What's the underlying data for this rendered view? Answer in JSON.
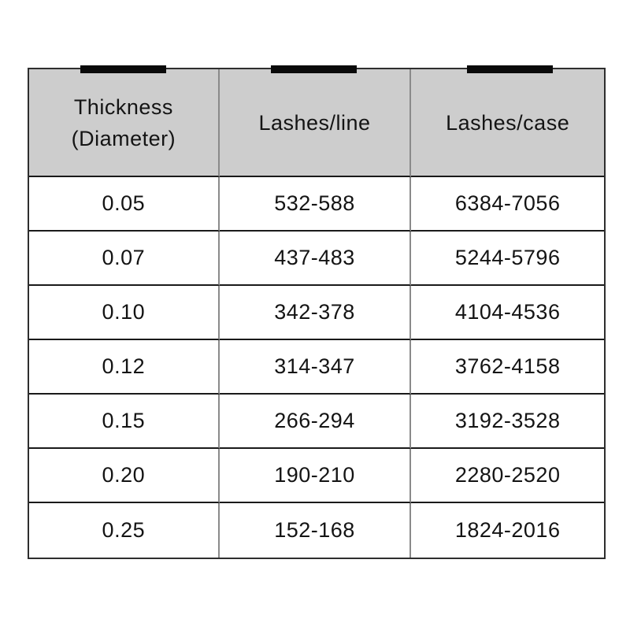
{
  "colors": {
    "page_background": "#ffffff",
    "header_background": "#cdcdcd",
    "outer_border": "#2e2e2e",
    "horizontal_rule": "#1a1a1a",
    "vertical_rule": "#8a8a8a",
    "text": "#141414",
    "tab_mark": "#0a0a0a"
  },
  "table": {
    "header": {
      "thickness_line1": "Thickness",
      "thickness_line2": "(Diameter)",
      "lashes_line": "Lashes/line",
      "lashes_case": "Lashes/case"
    }
  },
  "chart_data": {
    "type": "table",
    "columns": [
      "Thickness (Diameter)",
      "Lashes/line",
      "Lashes/case"
    ],
    "rows": [
      [
        "0.05",
        "532-588",
        "6384-7056"
      ],
      [
        "0.07",
        "437-483",
        "5244-5796"
      ],
      [
        "0.10",
        "342-378",
        "4104-4536"
      ],
      [
        "0.12",
        "314-347",
        "3762-4158"
      ],
      [
        "0.15",
        "266-294",
        "3192-3528"
      ],
      [
        "0.20",
        "190-210",
        "2280-2520"
      ],
      [
        "0.25",
        "152-168",
        "1824-2016"
      ]
    ]
  }
}
